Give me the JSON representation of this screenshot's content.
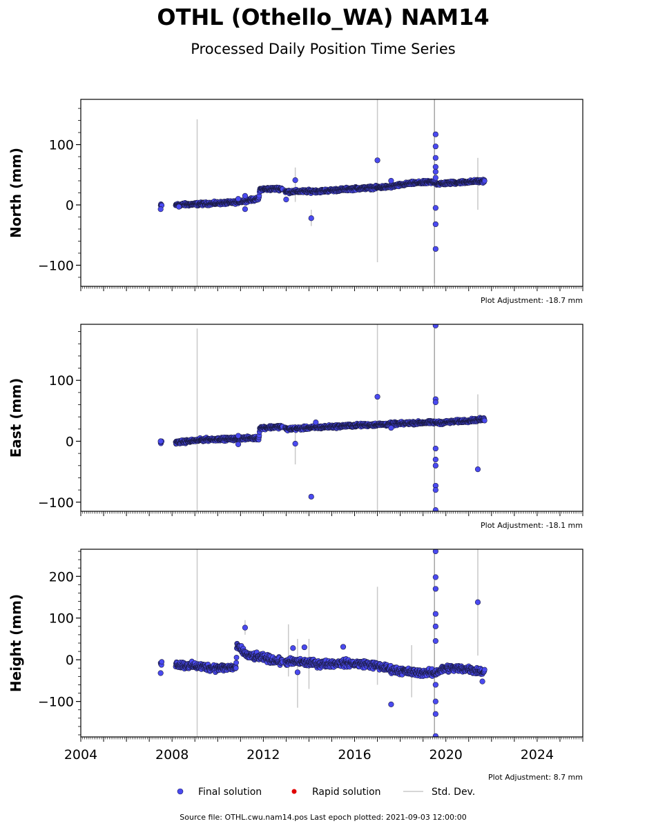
{
  "title": "OTHL (Othello_WA) NAM14",
  "subtitle": "Processed Daily Position Time Series",
  "legend": {
    "final": "Final solution",
    "rapid": "Rapid solution",
    "std": "Std. Dev."
  },
  "source_text": "Source file: OTHL.cwu.nam14.pos  Last epoch plotted: 2021-09-03 12:00:00",
  "colors": {
    "final": "#4a4af0",
    "rapid": "#e00000",
    "std": "#c8c8c8"
  },
  "chart_data": [
    {
      "type": "scatter",
      "panel": "north",
      "ylabel": "North (mm)",
      "adjustment": "Plot Adjustment: -18.7 mm",
      "xlim": [
        2004,
        2026
      ],
      "ylim": [
        -135,
        175
      ],
      "yticks": [
        -100,
        0,
        100
      ],
      "ytick_labels": [
        "−100",
        "0",
        "100"
      ],
      "trend": [
        [
          2007.5,
          -1
        ],
        [
          2008.2,
          0
        ],
        [
          2009.5,
          2
        ],
        [
          2010.7,
          4
        ],
        [
          2011.0,
          6
        ],
        [
          2011.8,
          10
        ],
        [
          2011.85,
          26
        ],
        [
          2012.8,
          27
        ],
        [
          2013.0,
          22
        ],
        [
          2014.5,
          23
        ],
        [
          2016.0,
          27
        ],
        [
          2017.5,
          30
        ],
        [
          2018.5,
          36
        ],
        [
          2019.5,
          38
        ],
        [
          2019.6,
          35
        ],
        [
          2021.7,
          40
        ]
      ],
      "outliers": [
        [
          2007.5,
          -7
        ],
        [
          2008.3,
          -3
        ],
        [
          2010.9,
          10
        ],
        [
          2011.2,
          -7
        ],
        [
          2011.2,
          15
        ],
        [
          2013.0,
          9
        ],
        [
          2013.4,
          41
        ],
        [
          2014.1,
          -22
        ],
        [
          2017.0,
          74
        ],
        [
          2017.6,
          40
        ],
        [
          2019.55,
          117
        ],
        [
          2019.55,
          97
        ],
        [
          2019.55,
          78
        ],
        [
          2019.55,
          63
        ],
        [
          2019.55,
          55
        ],
        [
          2019.55,
          45
        ],
        [
          2019.55,
          -5
        ],
        [
          2019.55,
          -32
        ],
        [
          2019.55,
          -73
        ]
      ],
      "stddev": [
        [
          2009.1,
          -135,
          142
        ],
        [
          2013.4,
          5,
          62
        ],
        [
          2014.1,
          -35,
          -8
        ],
        [
          2017.0,
          -95,
          175
        ],
        [
          2019.5,
          -130,
          175
        ],
        [
          2021.4,
          -8,
          78
        ]
      ]
    },
    {
      "type": "scatter",
      "panel": "east",
      "ylabel": "East (mm)",
      "adjustment": "Plot Adjustment: -18.1 mm",
      "xlim": [
        2004,
        2026
      ],
      "ylim": [
        -115,
        192
      ],
      "yticks": [
        -100,
        0,
        100
      ],
      "ytick_labels": [
        "−100",
        "0",
        "100"
      ],
      "trend": [
        [
          2007.5,
          -2
        ],
        [
          2008.2,
          -2
        ],
        [
          2009.5,
          3
        ],
        [
          2010.8,
          4
        ],
        [
          2011.0,
          5
        ],
        [
          2011.8,
          5
        ],
        [
          2011.85,
          22
        ],
        [
          2012.8,
          24
        ],
        [
          2013.0,
          20
        ],
        [
          2014.5,
          23
        ],
        [
          2016.0,
          26
        ],
        [
          2017.5,
          28
        ],
        [
          2018.5,
          30
        ],
        [
          2019.5,
          31
        ],
        [
          2019.6,
          30
        ],
        [
          2021.7,
          36
        ]
      ],
      "outliers": [
        [
          2007.5,
          0
        ],
        [
          2010.9,
          -5
        ],
        [
          2010.9,
          9
        ],
        [
          2013.4,
          -4
        ],
        [
          2014.1,
          -91
        ],
        [
          2014.3,
          31
        ],
        [
          2017.0,
          73
        ],
        [
          2017.6,
          22
        ],
        [
          2019.55,
          190
        ],
        [
          2019.55,
          69
        ],
        [
          2019.55,
          64
        ],
        [
          2019.55,
          -12
        ],
        [
          2019.55,
          -30
        ],
        [
          2019.55,
          -40
        ],
        [
          2019.55,
          -73
        ],
        [
          2019.55,
          -80
        ],
        [
          2019.55,
          -113
        ],
        [
          2021.4,
          -46
        ]
      ],
      "stddev": [
        [
          2009.1,
          -115,
          185
        ],
        [
          2013.4,
          -38,
          28
        ],
        [
          2017.0,
          -115,
          192
        ],
        [
          2019.5,
          -115,
          192
        ],
        [
          2021.4,
          -46,
          77
        ]
      ]
    },
    {
      "type": "scatter",
      "panel": "height",
      "ylabel": "Height (mm)",
      "adjustment": "Plot Adjustment: 8.7 mm",
      "xlim": [
        2004,
        2026
      ],
      "ylim": [
        -185,
        265
      ],
      "yticks": [
        -100,
        0,
        100,
        200
      ],
      "ytick_labels": [
        "−100",
        "0",
        "100",
        "200"
      ],
      "xticks": [
        2004,
        2008,
        2012,
        2016,
        2020,
        2024
      ],
      "trend": [
        [
          2007.5,
          -5
        ],
        [
          2008.3,
          -12
        ],
        [
          2009.0,
          -15
        ],
        [
          2010.0,
          -20
        ],
        [
          2010.8,
          -18
        ],
        [
          2010.85,
          33
        ],
        [
          2011.3,
          10
        ],
        [
          2012.0,
          5
        ],
        [
          2012.8,
          -5
        ],
        [
          2013.5,
          -5
        ],
        [
          2014.5,
          -10
        ],
        [
          2015.5,
          -8
        ],
        [
          2016.5,
          -10
        ],
        [
          2017.0,
          -15
        ],
        [
          2017.8,
          -25
        ],
        [
          2018.5,
          -30
        ],
        [
          2019.5,
          -32
        ],
        [
          2020.0,
          -20
        ],
        [
          2021.0,
          -22
        ],
        [
          2021.7,
          -30
        ]
      ],
      "outliers": [
        [
          2007.5,
          -32
        ],
        [
          2011.2,
          77
        ],
        [
          2013.3,
          28
        ],
        [
          2013.5,
          -30
        ],
        [
          2013.8,
          30
        ],
        [
          2015.5,
          31
        ],
        [
          2017.6,
          -107
        ],
        [
          2019.55,
          260
        ],
        [
          2019.55,
          198
        ],
        [
          2019.55,
          170
        ],
        [
          2019.55,
          110
        ],
        [
          2019.55,
          80
        ],
        [
          2019.55,
          45
        ],
        [
          2019.55,
          -60
        ],
        [
          2019.55,
          -100
        ],
        [
          2019.55,
          -130
        ],
        [
          2019.55,
          -183
        ],
        [
          2021.4,
          138
        ],
        [
          2021.6,
          -52
        ]
      ],
      "stddev": [
        [
          2009.1,
          -185,
          265
        ],
        [
          2011.2,
          60,
          95
        ],
        [
          2013.1,
          -40,
          85
        ],
        [
          2013.5,
          -115,
          50
        ],
        [
          2014.0,
          -70,
          50
        ],
        [
          2017.0,
          -60,
          175
        ],
        [
          2018.5,
          -90,
          35
        ],
        [
          2019.5,
          -185,
          265
        ],
        [
          2021.4,
          10,
          265
        ]
      ]
    }
  ]
}
